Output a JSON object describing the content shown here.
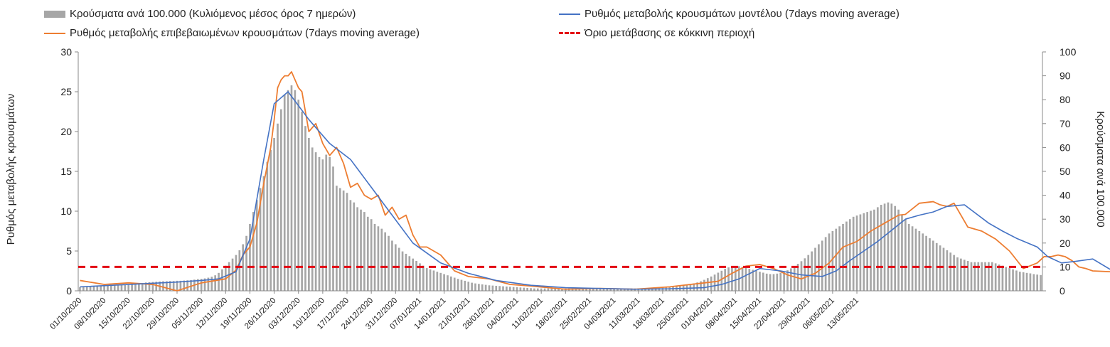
{
  "legend": {
    "bars": "Κρούσματα ανά 100.000 (Κυλιόμενος μέσος όρος 7 ημερών)",
    "model": "Ρυθμός μεταβολής κρουσμάτων μοντέλου (7days moving average)",
    "confirmed": "Ρυθμός μεταβολής επιβεβαιωμένων κρουσμάτων (7days moving average)",
    "threshold": "Όριο μετάβασης σε κόκκινη περιοχή"
  },
  "chart_data": {
    "type": "bar",
    "ylabel_left": "Ρυθμός μεταβολής κρουσμάτων",
    "ylabel_right": "Κρούσματα ανά 100.000",
    "ylim_left": [
      0,
      30
    ],
    "yticks_left": [
      "0",
      "5",
      "10",
      "15",
      "20",
      "25",
      "30"
    ],
    "ylim_right": [
      0,
      100
    ],
    "yticks_right": [
      "0",
      "10",
      "20",
      "30",
      "40",
      "50",
      "60",
      "70",
      "80",
      "90",
      "100"
    ],
    "grid": false,
    "legend_position": "top",
    "x_tick_labels": [
      "01/10/2020",
      "08/10/2020",
      "15/10/2020",
      "22/10/2020",
      "29/10/2020",
      "05/11/2020",
      "12/11/2020",
      "19/11/2020",
      "26/11/2020",
      "03/12/2020",
      "10/12/2020",
      "17/12/2020",
      "24/12/2020",
      "31/12/2020",
      "07/01/2021",
      "14/01/2021",
      "21/01/2021",
      "28/01/2021",
      "04/02/2021",
      "11/02/2021",
      "18/02/2021",
      "25/02/2021",
      "04/03/2021",
      "11/03/2021",
      "18/03/2021",
      "25/03/2021",
      "01/04/2021",
      "08/04/2021",
      "15/04/2021",
      "22/04/2021",
      "29/04/2021",
      "06/05/2021",
      "13/05/2021"
    ],
    "threshold_left": 3,
    "series": [
      {
        "name": "Κρούσματα ανά 100.000 (Κυλιόμενος μέσος όρος 7 ημερών)",
        "type": "bar",
        "axis": "right",
        "color": "#a6a6a6",
        "values": [
          1.5,
          1.6,
          1.7,
          1.8,
          1.8,
          1.9,
          2.0,
          2.0,
          2.1,
          2.2,
          2.3,
          2.4,
          2.5,
          2.6,
          2.7,
          2.8,
          3.0,
          3.1,
          3.3,
          3.5,
          3.6,
          3.7,
          3.8,
          3.9,
          4.0,
          4.0,
          4.1,
          4.1,
          4.2,
          4.2,
          4.3,
          4.4,
          4.5,
          4.7,
          4.9,
          5.0,
          5.2,
          5.5,
          5.9,
          6.5,
          7.5,
          9.0,
          10.5,
          12.0,
          13.5,
          15.0,
          17.0,
          19.5,
          23.0,
          28.0,
          33.0,
          38.0,
          43.0,
          48.0,
          54.0,
          59.0,
          64.0,
          70.0,
          76.0,
          82.0,
          84.0,
          86.0,
          84.0,
          80.0,
          75.0,
          69.0,
          64.0,
          60.0,
          58.0,
          56.0,
          55.0,
          57.0,
          56.0,
          52.0,
          44.0,
          43.0,
          42.0,
          41.0,
          38.0,
          37.0,
          35.0,
          34.0,
          33.0,
          31.0,
          30.0,
          28.0,
          27.0,
          26.0,
          24.5,
          23.0,
          21.0,
          19.5,
          18.0,
          16.5,
          15.5,
          14.5,
          13.5,
          12.5,
          11.5,
          10.5,
          9.5,
          9.0,
          8.5,
          8.0,
          7.5,
          7.0,
          6.5,
          6.0,
          5.5,
          5.0,
          4.6,
          4.2,
          3.8,
          3.4,
          3.1,
          2.9,
          2.7,
          2.5,
          2.3,
          2.2,
          2.1,
          2.0,
          1.9,
          1.8,
          1.7,
          1.6,
          1.5,
          1.4,
          1.3,
          1.2,
          1.1,
          1.0,
          1.0,
          1.0,
          1.0,
          1.0,
          1.0,
          1.0,
          1.0,
          1.0,
          1.0,
          1.0,
          1.0,
          1.0,
          1.0,
          1.0,
          1.0,
          1.0,
          1.0,
          1.0,
          1.0,
          1.0,
          1.0,
          1.0,
          1.0,
          1.0,
          1.0,
          1.0,
          1.0,
          1.0,
          1.0,
          1.0,
          1.0,
          1.0,
          1.0,
          1.1,
          1.2,
          1.3,
          1.4,
          1.5,
          1.6,
          1.7,
          1.9,
          2.1,
          2.3,
          2.5,
          2.8,
          3.1,
          3.5,
          4.0,
          4.6,
          5.3,
          6.0,
          6.8,
          7.6,
          8.4,
          9.2,
          9.8,
          10.2,
          10.4,
          10.3,
          10.0,
          9.6,
          9.2,
          8.8,
          8.4,
          8.0,
          7.6,
          7.2,
          7.0,
          7.0,
          7.2,
          7.5,
          8.0,
          8.6,
          9.4,
          10.3,
          11.3,
          12.4,
          13.6,
          15.0,
          16.5,
          18.0,
          19.5,
          21.0,
          22.5,
          24.0,
          25.0,
          26.0,
          27.0,
          28.0,
          29.0,
          30.0,
          31.0,
          31.5,
          32.0,
          32.5,
          33.0,
          33.5,
          34.0,
          35.0,
          36.0,
          36.5,
          37.0,
          36.5,
          35.5,
          34.0,
          32.0,
          30.0,
          28.0,
          27.0,
          26.0,
          25.0,
          24.0,
          23.0,
          22.0,
          21.0,
          20.0,
          19.0,
          18.0,
          17.0,
          16.0,
          15.0,
          14.0,
          13.5,
          13.0,
          12.5,
          12.0,
          12.0,
          12.0,
          12.0,
          12.0,
          12.0,
          12.0,
          11.5,
          11.0,
          10.5,
          10.0,
          9.5,
          9.0,
          8.5,
          8.0,
          7.8,
          7.5,
          7.3,
          7.0,
          6.8,
          6.6
        ]
      },
      {
        "name": "Ρυθμός μεταβολής κρουσμάτων μοντέλου (7days moving average)",
        "type": "line",
        "axis": "left",
        "color": "#4472c4",
        "x_index": [
          0,
          14,
          28,
          35,
          40,
          45,
          49,
          53,
          56,
          60,
          66,
          72,
          78,
          84,
          90,
          96,
          104,
          112,
          120,
          130,
          140,
          150,
          160,
          170,
          180,
          185,
          190,
          196,
          202,
          208,
          214,
          218,
          222,
          226,
          230,
          234,
          238,
          242,
          246,
          250,
          255,
          262,
          266,
          270,
          276,
          279,
          283,
          287,
          292,
          297
        ],
        "values": [
          0.5,
          0.8,
          1.1,
          1.3,
          1.5,
          2.4,
          6.5,
          16.5,
          23.5,
          25.0,
          21.5,
          18.5,
          16.5,
          13.0,
          9.5,
          6.0,
          3.5,
          2.2,
          1.3,
          0.7,
          0.4,
          0.3,
          0.2,
          0.25,
          0.4,
          0.8,
          1.5,
          2.8,
          2.5,
          2.0,
          1.8,
          2.5,
          3.8,
          5.0,
          6.2,
          7.6,
          9.0,
          9.5,
          9.9,
          10.6,
          10.8,
          8.5,
          7.5,
          6.6,
          5.5,
          4.3,
          3.5,
          3.7,
          4.0,
          2.7
        ]
      },
      {
        "name": "Ρυθμός μεταβολής επιβεβαιωμένων κρουσμάτων (7days moving average)",
        "type": "line",
        "axis": "left",
        "color": "#ed7d31",
        "x_index": [
          0,
          7,
          14,
          21,
          28,
          35,
          42,
          45,
          47,
          49,
          51,
          53,
          55,
          56,
          57,
          58,
          59,
          60,
          61,
          62,
          63,
          64,
          66,
          68,
          70,
          72,
          74,
          76,
          78,
          80,
          82,
          84,
          86,
          88,
          90,
          92,
          94,
          96,
          98,
          100,
          104,
          108,
          112,
          118,
          124,
          130,
          140,
          150,
          160,
          170,
          180,
          184,
          188,
          192,
          196,
          200,
          204,
          208,
          212,
          216,
          220,
          224,
          228,
          232,
          236,
          238,
          242,
          246,
          248,
          250,
          252,
          256,
          260,
          264,
          268,
          272,
          276,
          278,
          280,
          282,
          284,
          286,
          288,
          290,
          292,
          297
        ],
        "values": [
          1.3,
          0.8,
          1.0,
          0.8,
          0.0,
          1.0,
          1.5,
          2.6,
          4.5,
          5.5,
          8.5,
          13.5,
          18.0,
          21.5,
          25.5,
          26.5,
          27.0,
          27.0,
          27.5,
          26.5,
          25.5,
          25.0,
          20.0,
          21.0,
          18.5,
          17.0,
          18.0,
          16.0,
          13.0,
          13.5,
          12.0,
          11.5,
          12.0,
          9.5,
          10.5,
          9.0,
          9.5,
          7.0,
          5.5,
          5.5,
          4.5,
          2.5,
          1.8,
          1.5,
          0.8,
          0.6,
          0.2,
          0.3,
          0.2,
          0.5,
          1.0,
          1.2,
          2.2,
          3.1,
          3.3,
          2.8,
          2.0,
          1.5,
          2.2,
          3.5,
          5.5,
          6.2,
          7.5,
          8.5,
          9.5,
          9.6,
          11.0,
          11.2,
          10.8,
          10.6,
          11.0,
          8.0,
          7.5,
          6.5,
          5.0,
          2.8,
          3.5,
          4.3,
          4.3,
          4.5,
          4.3,
          3.8,
          3.0,
          2.8,
          2.5,
          2.4
        ]
      },
      {
        "name": "Όριο μετάβασης σε κόκκινη περιοχή",
        "type": "line",
        "axis": "left",
        "color": "#e30613",
        "style": "dashed",
        "values": [
          3,
          3
        ]
      }
    ]
  }
}
